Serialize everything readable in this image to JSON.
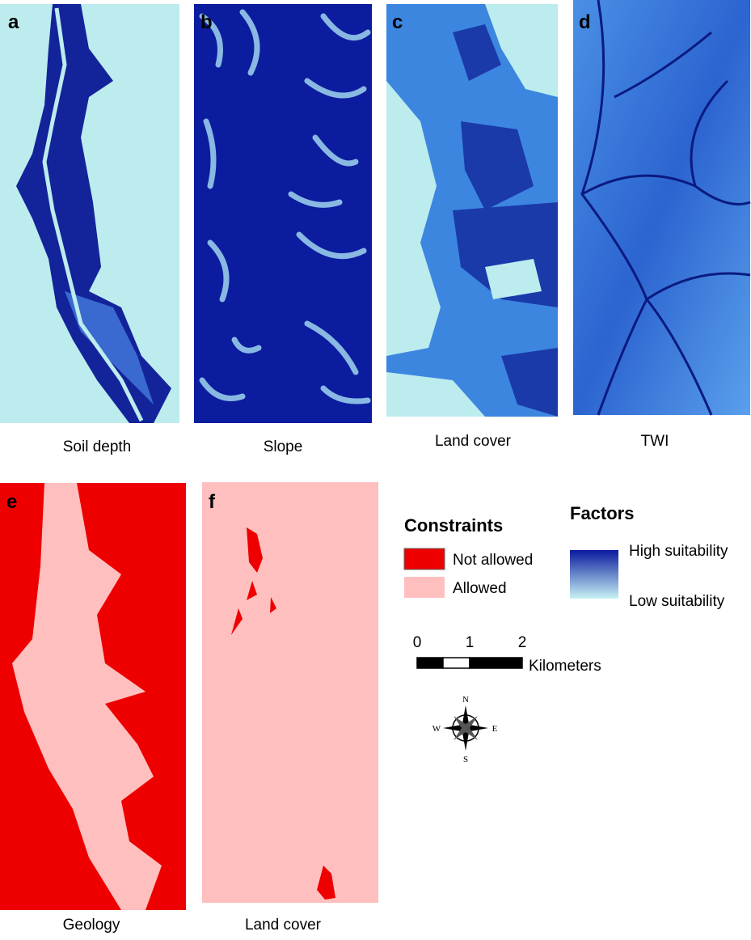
{
  "panels": [
    {
      "letter": "a",
      "caption": "Soil depth"
    },
    {
      "letter": "b",
      "caption": "Slope"
    },
    {
      "letter": "c",
      "caption": "Land cover"
    },
    {
      "letter": "d",
      "caption": "TWI"
    },
    {
      "letter": "e",
      "caption": "Geology"
    },
    {
      "letter": "f",
      "caption": "Land cover"
    }
  ],
  "legend": {
    "constraints": {
      "title": "Constraints",
      "items": [
        "Not allowed",
        "Allowed"
      ]
    },
    "factors": {
      "title": "Factors",
      "high": "High suitability",
      "low": "Low suitability"
    }
  },
  "scale_bar": {
    "ticks": [
      0,
      1,
      2
    ],
    "unit": "Kilometers"
  },
  "compass": {
    "n": "N",
    "s": "S",
    "e": "E",
    "w": "W"
  }
}
